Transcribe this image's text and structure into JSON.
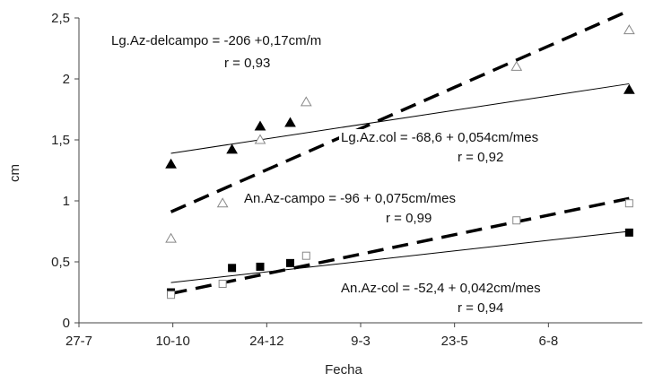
{
  "chart_data": {
    "type": "scatter",
    "xlabel": "Fecha",
    "ylabel": "cm",
    "x_ticks": [
      "27-7",
      "10-10",
      "24-12",
      "9-3",
      "23-5",
      "6-8"
    ],
    "y_ticks": [
      "0",
      "0,5",
      "1",
      "1,5",
      "2",
      "2,5"
    ],
    "xlim": [
      0,
      6
    ],
    "ylim": [
      0,
      2.5
    ],
    "series": [
      {
        "marker": "filled-triangle",
        "color": "#000000",
        "points": [
          [
            0.98,
            1.3
          ],
          [
            1.63,
            1.42
          ],
          [
            1.93,
            1.61
          ],
          [
            2.25,
            1.64
          ],
          [
            5.86,
            1.91
          ]
        ],
        "fit": {
          "x": [
            0.98,
            5.86
          ],
          "y": [
            1.39,
            1.96
          ],
          "dash": "solid"
        }
      },
      {
        "marker": "open-triangle",
        "color": "#888888",
        "points": [
          [
            0.98,
            0.69
          ],
          [
            1.53,
            0.98
          ],
          [
            1.93,
            1.5
          ],
          [
            2.42,
            1.81
          ],
          [
            4.66,
            2.1
          ],
          [
            5.86,
            2.4
          ]
        ],
        "fit": {
          "x": [
            0.98,
            5.86
          ],
          "y": [
            0.91,
            2.56
          ],
          "dash": "long-dash"
        }
      },
      {
        "marker": "filled-square",
        "color": "#000000",
        "points": [
          [
            0.98,
            0.25
          ],
          [
            1.63,
            0.45
          ],
          [
            1.93,
            0.46
          ],
          [
            2.25,
            0.49
          ],
          [
            5.86,
            0.74
          ]
        ],
        "fit": {
          "x": [
            0.98,
            5.86
          ],
          "y": [
            0.33,
            0.75
          ],
          "dash": "solid"
        }
      },
      {
        "marker": "open-square",
        "color": "#888888",
        "points": [
          [
            0.98,
            0.23
          ],
          [
            1.53,
            0.32
          ],
          [
            2.42,
            0.55
          ],
          [
            4.66,
            0.84
          ],
          [
            5.86,
            0.98
          ]
        ],
        "fit": {
          "x": [
            0.98,
            5.86
          ],
          "y": [
            0.24,
            1.02
          ],
          "dash": "long-dash"
        }
      }
    ],
    "annotations": [
      {
        "id": "lg-campo",
        "lines": [
          "Lg.Az-delcampo = -206 +0,17cm/m",
          "r = 0,93"
        ]
      },
      {
        "id": "lg-col",
        "lines": [
          "Lg.Az.col = -68,6 +   0,054cm/mes",
          "r = 0,92"
        ]
      },
      {
        "id": "an-campo",
        "lines": [
          "An.Az-campo = -96 + 0,075cm/mes",
          "r = 0,99"
        ]
      },
      {
        "id": "an-col",
        "lines": [
          "An.Az-col = -52,4 + 0,042cm/mes",
          "r = 0,94"
        ]
      }
    ]
  }
}
